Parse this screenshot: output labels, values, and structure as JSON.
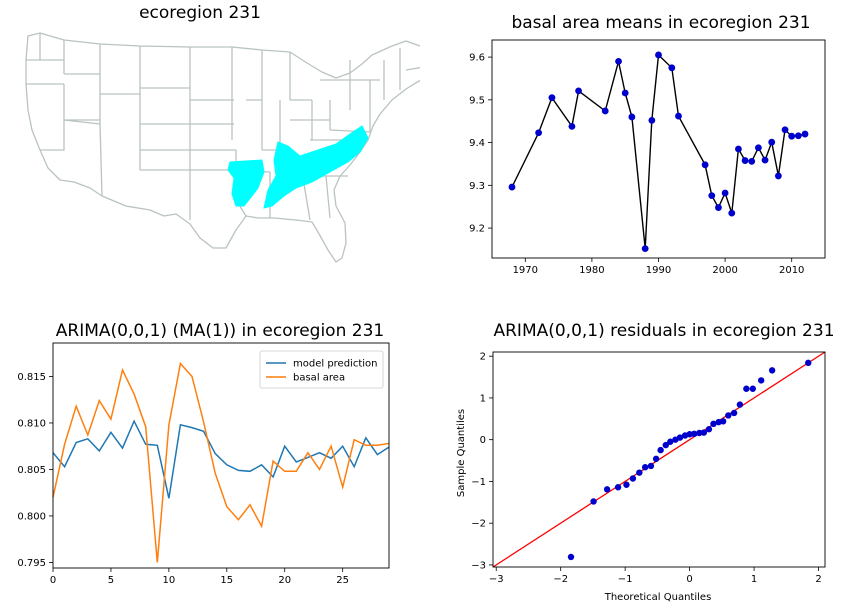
{
  "chart_data": [
    {
      "type": "map",
      "title": "ecoregion 231",
      "highlight_color": "#00ffff"
    },
    {
      "type": "line",
      "title": "basal area means in ecoregion 231",
      "xlim": [
        1965,
        2015
      ],
      "ylim": [
        9.13,
        9.64
      ],
      "xticks": [
        1970,
        1980,
        1990,
        2000,
        2010
      ],
      "yticks": [
        9.2,
        9.3,
        9.4,
        9.5,
        9.6
      ],
      "ytick_labels": [
        "9.2",
        "9.3",
        "9.4",
        "9.5",
        "9.6"
      ],
      "line_color": "#000000",
      "marker_color": "#0000cc",
      "points": [
        [
          1968,
          9.296
        ],
        [
          1972,
          9.423
        ],
        [
          1974,
          9.505
        ],
        [
          1977,
          9.438
        ],
        [
          1978,
          9.521
        ],
        [
          1982,
          9.474
        ],
        [
          1984,
          9.59
        ],
        [
          1985,
          9.516
        ],
        [
          1986,
          9.46
        ],
        [
          1988,
          9.152
        ],
        [
          1989,
          9.452
        ],
        [
          1990,
          9.605
        ],
        [
          1992,
          9.575
        ],
        [
          1993,
          9.462
        ],
        [
          1997,
          9.348
        ],
        [
          1998,
          9.276
        ],
        [
          1999,
          9.248
        ],
        [
          2000,
          9.282
        ],
        [
          2001,
          9.235
        ],
        [
          2002,
          9.385
        ],
        [
          2003,
          9.358
        ],
        [
          2004,
          9.356
        ],
        [
          2005,
          9.388
        ],
        [
          2006,
          9.359
        ],
        [
          2007,
          9.401
        ],
        [
          2008,
          9.322
        ],
        [
          2009,
          9.43
        ],
        [
          2010,
          9.415
        ],
        [
          2011,
          9.416
        ],
        [
          2012,
          9.42
        ]
      ]
    },
    {
      "type": "line",
      "title": "ARIMA(0,0,1)  (MA(1)) in  ecoregion 231",
      "xlim": [
        0,
        29
      ],
      "ylim": [
        0.7944,
        0.8186
      ],
      "xticks": [
        0,
        5,
        10,
        15,
        20,
        25
      ],
      "yticks": [
        0.795,
        0.8,
        0.805,
        0.81,
        0.815
      ],
      "ytick_labels": [
        "0.795",
        "0.800",
        "0.805",
        "0.810",
        "0.815"
      ],
      "legend": "top-right",
      "series": [
        {
          "name": "model prediction",
          "color": "#1f77b4",
          "values": [
            0.8068,
            0.8053,
            0.8079,
            0.8083,
            0.807,
            0.809,
            0.8073,
            0.8102,
            0.8077,
            0.8076,
            0.8019,
            0.8098,
            0.8095,
            0.8091,
            0.8067,
            0.8055,
            0.8049,
            0.8048,
            0.8055,
            0.8042,
            0.8075,
            0.8058,
            0.8063,
            0.8068,
            0.8062,
            0.8075,
            0.8053,
            0.8084,
            0.8066,
            0.8074
          ]
        },
        {
          "name": "basal area",
          "color": "#ff7f0e",
          "values": [
            0.802,
            0.8077,
            0.8118,
            0.8087,
            0.8124,
            0.8104,
            0.8157,
            0.8131,
            0.8096,
            0.795,
            0.8098,
            0.8164,
            0.815,
            0.8101,
            0.8046,
            0.801,
            0.7996,
            0.8012,
            0.7989,
            0.8059,
            0.8048,
            0.8048,
            0.8068,
            0.805,
            0.8075,
            0.8031,
            0.8082,
            0.8076,
            0.8076,
            0.8078
          ]
        }
      ]
    },
    {
      "type": "scatter",
      "title": "ARIMA(0,0,1) residuals in ecoregion 231",
      "xlabel": "Theoretical Quantiles",
      "ylabel": "Sample Quantiles",
      "xlim": [
        -3.05,
        2.1
      ],
      "ylim": [
        -3.05,
        2.1
      ],
      "xticks": [
        -3,
        -2,
        -1,
        0,
        1,
        2
      ],
      "yticks": [
        -3,
        -2,
        -1,
        0,
        1,
        2
      ],
      "tick_labels": [
        "−3",
        "−2",
        "−1",
        "0",
        "1",
        "2"
      ],
      "marker_color": "#0000cc",
      "reference_line_color": "#ff0000",
      "reference_line": [
        [
          -3.05,
          -3.05
        ],
        [
          2.1,
          2.1
        ]
      ],
      "points": [
        [
          -1.84,
          -2.81
        ],
        [
          -1.49,
          -1.48
        ],
        [
          -1.28,
          -1.19
        ],
        [
          -1.11,
          -1.14
        ],
        [
          -0.98,
          -1.08
        ],
        [
          -0.88,
          -0.93
        ],
        [
          -0.78,
          -0.79
        ],
        [
          -0.69,
          -0.66
        ],
        [
          -0.6,
          -0.63
        ],
        [
          -0.52,
          -0.46
        ],
        [
          -0.45,
          -0.25
        ],
        [
          -0.37,
          -0.13
        ],
        [
          -0.3,
          -0.05
        ],
        [
          -0.22,
          0.0
        ],
        [
          -0.15,
          0.05
        ],
        [
          -0.07,
          0.1
        ],
        [
          0.0,
          0.13
        ],
        [
          0.07,
          0.14
        ],
        [
          0.15,
          0.16
        ],
        [
          0.22,
          0.17
        ],
        [
          0.3,
          0.25
        ],
        [
          0.37,
          0.38
        ],
        [
          0.45,
          0.42
        ],
        [
          0.52,
          0.44
        ],
        [
          0.6,
          0.58
        ],
        [
          0.69,
          0.64
        ],
        [
          0.78,
          0.84
        ],
        [
          0.88,
          1.22
        ],
        [
          0.98,
          1.22
        ],
        [
          1.11,
          1.42
        ],
        [
          1.28,
          1.66
        ],
        [
          1.84,
          1.84
        ]
      ]
    }
  ]
}
